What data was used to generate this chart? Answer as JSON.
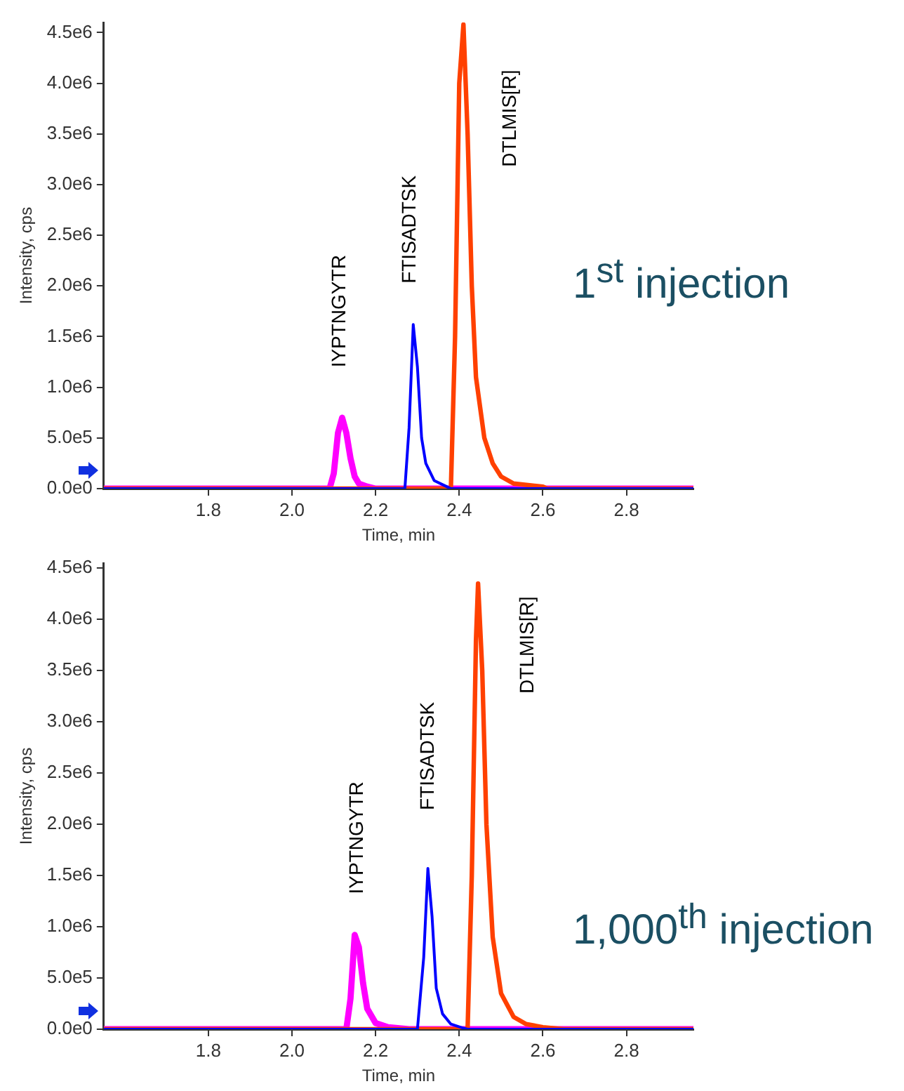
{
  "chart_data": [
    {
      "type": "line",
      "xlabel": "Time, min",
      "ylabel": "Intensity, cps",
      "xlim": [
        1.55,
        2.96
      ],
      "xticks": [
        1.8,
        {
          "value": 2,
          "label": "2.0"
        },
        2.2,
        2.4,
        2.6,
        2.8
      ],
      "ylim": [
        0,
        4600000
      ],
      "yticks": [
        {
          "value": 0,
          "label": "0.0e0"
        },
        {
          "value": 500000,
          "label": "5.0e5"
        },
        {
          "value": 1000000,
          "label": "1.0e6"
        },
        {
          "value": 1500000,
          "label": "1.5e6"
        },
        {
          "value": 2000000,
          "label": "2.0e6"
        },
        {
          "value": 2500000,
          "label": "2.5e6"
        },
        {
          "value": 3000000,
          "label": "3.0e6"
        },
        {
          "value": 3500000,
          "label": "3.5e6"
        },
        {
          "value": 4000000,
          "label": "4.0e6"
        },
        {
          "value": 4500000,
          "label": "4.5e6"
        }
      ],
      "grid": false,
      "legend": false,
      "marker": "none",
      "series": [
        {
          "color": "#ff00ff",
          "x": [
            1.55,
            2.09,
            2.1,
            2.11,
            2.12,
            2.13,
            2.14,
            2.15,
            2.16,
            2.18,
            2.2,
            2.96
          ],
          "values": [
            0,
            0,
            150000,
            550000,
            700000,
            550000,
            300000,
            120000,
            50000,
            20000,
            0,
            0
          ]
        },
        {
          "color": "#ff4000",
          "x": [
            1.55,
            2.38,
            2.39,
            2.4,
            2.41,
            2.42,
            2.43,
            2.44,
            2.46,
            2.48,
            2.5,
            2.53,
            2.6,
            2.61,
            2.96
          ],
          "values": [
            0,
            0,
            1500000,
            4000000,
            4580000,
            3500000,
            2000000,
            1100000,
            500000,
            250000,
            120000,
            50000,
            20000,
            0,
            0
          ]
        },
        {
          "color": "#0000ff",
          "x": [
            1.55,
            2.27,
            2.28,
            2.29,
            2.3,
            2.31,
            2.32,
            2.34,
            2.37,
            2.38,
            2.96
          ],
          "values": [
            0,
            0,
            600000,
            1620000,
            1200000,
            500000,
            250000,
            80000,
            20000,
            0,
            0
          ]
        }
      ],
      "annotations": [
        "IYPTNGYTR",
        "FTISADTSK",
        "DTLMIS[R]",
        "1$^{st}$ injection"
      ]
    },
    {
      "type": "line",
      "xlabel": "Time, min",
      "ylabel": "Intensity, cps",
      "xlim": [
        1.55,
        2.96
      ],
      "xticks": [
        1.8,
        {
          "value": 2,
          "label": "2.0"
        },
        2.2,
        2.4,
        2.6,
        2.8
      ],
      "ylim": [
        0,
        4550000
      ],
      "yticks": [
        {
          "value": 0,
          "label": "0.0e0"
        },
        {
          "value": 500000,
          "label": "5.0e5"
        },
        {
          "value": 1000000,
          "label": "1.0e6"
        },
        {
          "value": 1500000,
          "label": "1.5e6"
        },
        {
          "value": 2000000,
          "label": "2.0e6"
        },
        {
          "value": 2500000,
          "label": "2.5e6"
        },
        {
          "value": 3000000,
          "label": "3.0e6"
        },
        {
          "value": 3500000,
          "label": "3.5e6"
        },
        {
          "value": 4000000,
          "label": "4.0e6"
        },
        {
          "value": 4500000,
          "label": "4.5e6"
        }
      ],
      "grid": false,
      "legend": false,
      "marker": "none",
      "series": [
        {
          "color": "#ff00ff",
          "x": [
            1.55,
            2.13,
            2.14,
            2.15,
            2.16,
            2.17,
            2.18,
            2.2,
            2.23,
            2.28,
            2.96
          ],
          "values": [
            0,
            0,
            300000,
            920000,
            800000,
            450000,
            200000,
            60000,
            20000,
            0,
            0
          ]
        },
        {
          "color": "#ff4000",
          "x": [
            1.55,
            2.42,
            2.43,
            2.44,
            2.445,
            2.455,
            2.465,
            2.48,
            2.5,
            2.53,
            2.56,
            2.6,
            2.65,
            2.96
          ],
          "values": [
            0,
            0,
            1500000,
            3800000,
            4350000,
            3500000,
            2000000,
            900000,
            350000,
            120000,
            50000,
            20000,
            0,
            0
          ]
        },
        {
          "color": "#0000ff",
          "x": [
            1.55,
            2.3,
            2.315,
            2.325,
            2.335,
            2.345,
            2.36,
            2.38,
            2.41,
            2.42,
            2.96
          ],
          "values": [
            0,
            0,
            700000,
            1570000,
            1100000,
            400000,
            150000,
            50000,
            10000,
            0,
            0
          ]
        }
      ],
      "annotations": [
        "IYPTNGYTR",
        "FTISADTSK",
        "DTLMIS[R]",
        "1,000$^{th}$ injection"
      ]
    }
  ]
}
